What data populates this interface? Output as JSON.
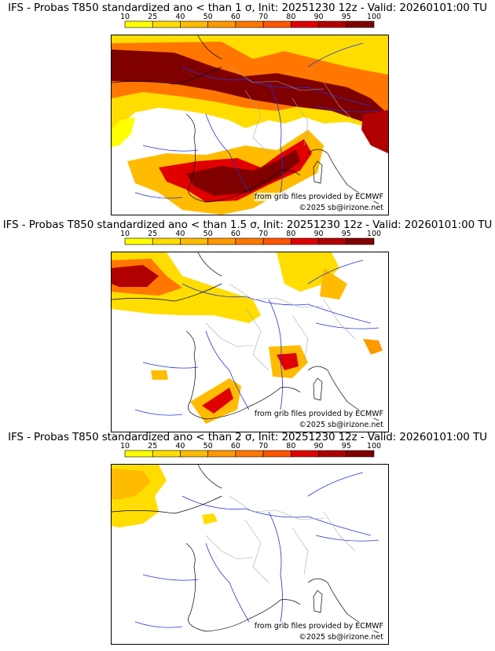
{
  "colorbar": {
    "ticks": [
      "10",
      "25",
      "40",
      "50",
      "60",
      "70",
      "80",
      "90",
      "95",
      "100"
    ],
    "colors": [
      "#ffff00",
      "#ffdd00",
      "#ffbb00",
      "#ff9900",
      "#ff7700",
      "#ff5500",
      "#e00000",
      "#b00000",
      "#800000"
    ]
  },
  "map_colors": {
    "river": "#2233dd",
    "border": "#aaaaaa",
    "coast": "#000000"
  },
  "credits": {
    "source": "from grib files provided by ECMWF",
    "copyright": "©2025 sb@irizone.net"
  },
  "panels": [
    {
      "title": "IFS - Probas T850  standardized ano < than 1 σ, Init: 20251230 12z - Valid: 20260101:00 TU"
    },
    {
      "title": "IFS - Probas T850  standardized ano < than 1.5 σ, Init: 20251230 12z - Valid: 20260101:00 TU"
    },
    {
      "title": "IFS - Probas T850  standardized ano < than 2 σ, Init: 20251230 12z - Valid: 20260101:00 TU"
    }
  ]
}
